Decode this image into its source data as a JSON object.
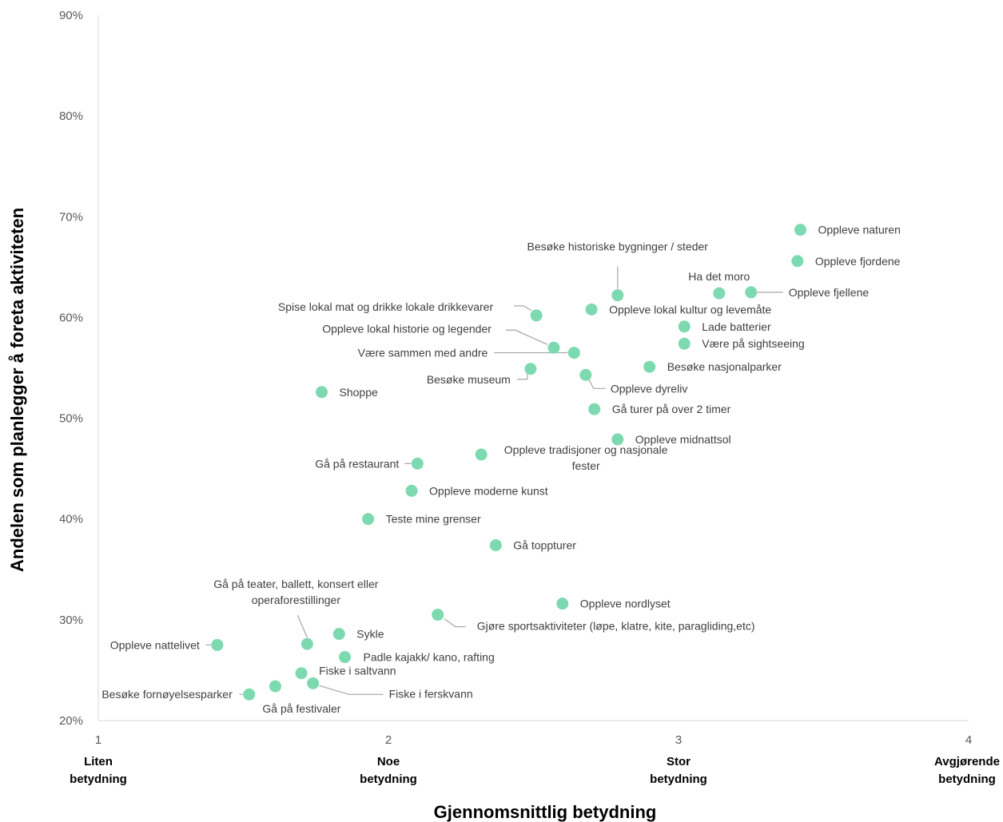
{
  "chart_data": {
    "type": "scatter",
    "title": "",
    "xlabel": "Gjennomsnittlig betydning",
    "ylabel": "Andelen som planlegger å foreta aktiviteten",
    "xlim": [
      1,
      4
    ],
    "ylim": [
      20,
      90
    ],
    "x_ticks": [
      "1",
      "2",
      "3",
      "4"
    ],
    "y_ticks": [
      "20%",
      "30%",
      "40%",
      "50%",
      "60%",
      "70%",
      "80%",
      "90%"
    ],
    "x_categories": [
      {
        "x": 1,
        "lines": [
          "Liten",
          "betydning"
        ]
      },
      {
        "x": 2,
        "lines": [
          "Noe",
          "betydning"
        ]
      },
      {
        "x": 3,
        "lines": [
          "Stor",
          "betydning"
        ]
      },
      {
        "x": 4,
        "lines": [
          "Avgjørende",
          "betydning"
        ]
      }
    ],
    "grid": false,
    "marker_color": "#7dd9b0",
    "points": [
      {
        "label": "Oppleve naturen",
        "x": 3.42,
        "y": 68.7
      },
      {
        "label": "Oppleve fjordene",
        "x": 3.41,
        "y": 65.6
      },
      {
        "label": "Oppleve fjellene",
        "x": 3.25,
        "y": 62.5
      },
      {
        "label": "Ha det moro",
        "x": 3.14,
        "y": 62.4
      },
      {
        "label": "Besøke historiske bygninger / steder",
        "x": 2.79,
        "y": 62.2
      },
      {
        "label": "Oppleve lokal kultur og levemåte",
        "x": 2.7,
        "y": 60.8
      },
      {
        "label": "Spise lokal mat og drikke lokale drikkevarer",
        "x": 2.51,
        "y": 60.2
      },
      {
        "label": "Lade batterier",
        "x": 3.02,
        "y": 59.1
      },
      {
        "label": "Være på sightseeing",
        "x": 3.02,
        "y": 57.4
      },
      {
        "label": "Oppleve lokal historie og legender",
        "x": 2.57,
        "y": 57.0
      },
      {
        "label": "Være sammen med andre",
        "x": 2.64,
        "y": 56.5
      },
      {
        "label": "Besøke nasjonalparker",
        "x": 2.9,
        "y": 55.1
      },
      {
        "label": "Besøke museum",
        "x": 2.49,
        "y": 54.9
      },
      {
        "label": "Oppleve dyreliv",
        "x": 2.68,
        "y": 54.3
      },
      {
        "label": "Shoppe",
        "x": 1.77,
        "y": 52.6
      },
      {
        "label": "Gå turer på over 2 timer",
        "x": 2.71,
        "y": 50.9
      },
      {
        "label": "Oppleve midnattsol",
        "x": 2.79,
        "y": 47.9
      },
      {
        "label": "Oppleve tradisjoner og nasjonale fester",
        "x": 2.32,
        "y": 46.4
      },
      {
        "label": "Gå på restaurant",
        "x": 2.1,
        "y": 45.5
      },
      {
        "label": "Oppleve moderne kunst",
        "x": 2.08,
        "y": 42.8
      },
      {
        "label": "Teste mine grenser",
        "x": 1.93,
        "y": 40.0
      },
      {
        "label": "Gå toppturer",
        "x": 2.37,
        "y": 37.4
      },
      {
        "label": "Oppleve nordlyset",
        "x": 2.6,
        "y": 31.6
      },
      {
        "label": "Gjøre sportsaktiviteter (løpe, klatre, kite, paragliding,etc)",
        "x": 2.17,
        "y": 30.5
      },
      {
        "label": "Sykle",
        "x": 1.83,
        "y": 28.6
      },
      {
        "label": "Gå på teater, ballett, konsert eller operaforestillinger",
        "x": 1.72,
        "y": 27.6
      },
      {
        "label": "Oppleve nattelivet",
        "x": 1.41,
        "y": 27.5
      },
      {
        "label": "Padle kajakk/ kano, rafting",
        "x": 1.85,
        "y": 26.3
      },
      {
        "label": "Fiske i saltvann",
        "x": 1.7,
        "y": 24.7
      },
      {
        "label": "Fiske i ferskvann",
        "x": 1.74,
        "y": 23.7
      },
      {
        "label": "Gå på festivaler",
        "x": 1.61,
        "y": 23.4
      },
      {
        "label": "Besøke fornøyelsesparker",
        "x": 1.52,
        "y": 22.6
      }
    ]
  }
}
